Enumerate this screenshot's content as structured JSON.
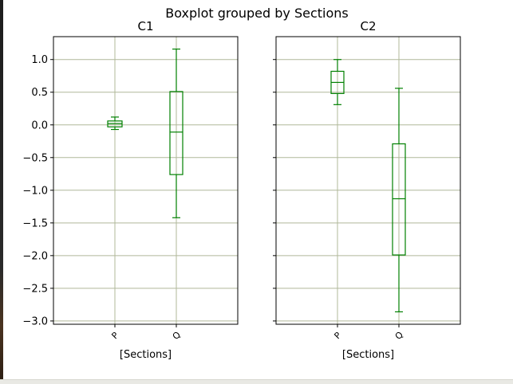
{
  "chart_data": {
    "type": "box",
    "suptitle": "Boxplot grouped by Sections",
    "box_color": "#008000",
    "grid_color": "#b0b89a",
    "grid": true,
    "ylim": [
      -3.05,
      1.35
    ],
    "yticks": [
      1.0,
      0.5,
      0.0,
      -0.5,
      -1.0,
      -1.5,
      -2.0,
      -2.5,
      -3.0
    ],
    "ytick_labels": [
      "1.0",
      "0.5",
      "0.0",
      "−0.5",
      "−1.0",
      "−1.5",
      "−2.0",
      "−2.5",
      "−3.0"
    ],
    "panels": [
      {
        "title": "C1",
        "xlabel": "[Sections]",
        "categories": [
          "P",
          "Q"
        ],
        "boxes": [
          {
            "whislo": -0.07,
            "q1": -0.03,
            "med": 0.02,
            "q3": 0.06,
            "whishi": 0.12
          },
          {
            "whislo": -1.42,
            "q1": -0.76,
            "med": -0.11,
            "q3": 0.51,
            "whishi": 1.16
          }
        ]
      },
      {
        "title": "C2",
        "xlabel": "[Sections]",
        "categories": [
          "P",
          "Q"
        ],
        "boxes": [
          {
            "whislo": 0.31,
            "q1": 0.48,
            "med": 0.65,
            "q3": 0.82,
            "whishi": 1.0
          },
          {
            "whislo": -2.86,
            "q1": -1.99,
            "med": -1.13,
            "q3": -0.29,
            "whishi": 0.56
          }
        ]
      }
    ]
  }
}
